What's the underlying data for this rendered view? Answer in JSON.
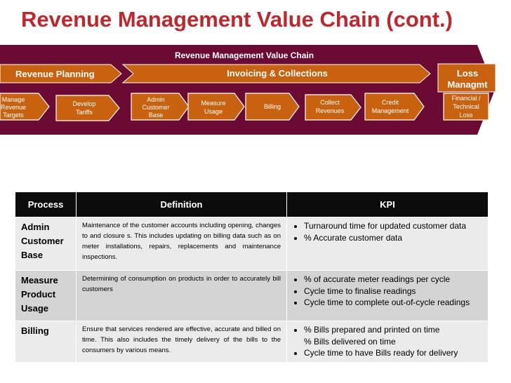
{
  "title": "Revenue Management Value Chain (cont.)",
  "chain": {
    "header": "Revenue Management Value Chain",
    "stages": {
      "planning": "Revenue Planning",
      "invoicing": "Invoicing & Collections",
      "loss": [
        "Loss",
        "Managmt"
      ]
    },
    "boxes": {
      "manage": [
        "Manage",
        "Revenue",
        "Targets"
      ],
      "develop": [
        "Develop",
        "Tariffs"
      ],
      "admin": [
        "Admin",
        "Customer",
        "Base"
      ],
      "measure": [
        "Measure",
        "Usage"
      ],
      "billing": [
        "Billing"
      ],
      "collect": [
        "Collect",
        "Revenues"
      ],
      "credit": [
        "Credit",
        "Management"
      ],
      "financial": [
        "Financial /",
        "Technical",
        "Loss"
      ]
    },
    "colors": {
      "maroon": "#6b0a33",
      "orange": "#c9620f",
      "white": "#ffffff"
    }
  },
  "table": {
    "headers": {
      "process": "Process",
      "definition": "Definition",
      "kpi": "KPI"
    },
    "rows": [
      {
        "process": [
          "Admin",
          "Customer",
          "Base"
        ],
        "definition": "Maintenance of the customer accounts including opening, changes to and closure s. This includes updating on billing data such as on meter installations, repairs, replacements and maintenance inspections.",
        "kpis": [
          "Turnaround time for updated customer data",
          "% Accurate customer data"
        ]
      },
      {
        "process": [
          "Measure",
          "Product",
          "Usage"
        ],
        "definition": "Determining of consumption on products in order to accurately bill customers",
        "kpis": [
          "% of accurate meter readings per cycle",
          "Cycle time to finalise readings",
          "Cycle time to complete out-of-cycle readings"
        ]
      },
      {
        "process": [
          "Billing"
        ],
        "definition": "Ensure that services rendered are effective, accurate and billed on time. This also includes the timely delivery of the bills to the consumers by various means.",
        "kpis": [
          "% Bills prepared and printed on time",
          "% Bills delivered on time",
          "Cycle time to have Bills ready for delivery"
        ]
      }
    ]
  }
}
